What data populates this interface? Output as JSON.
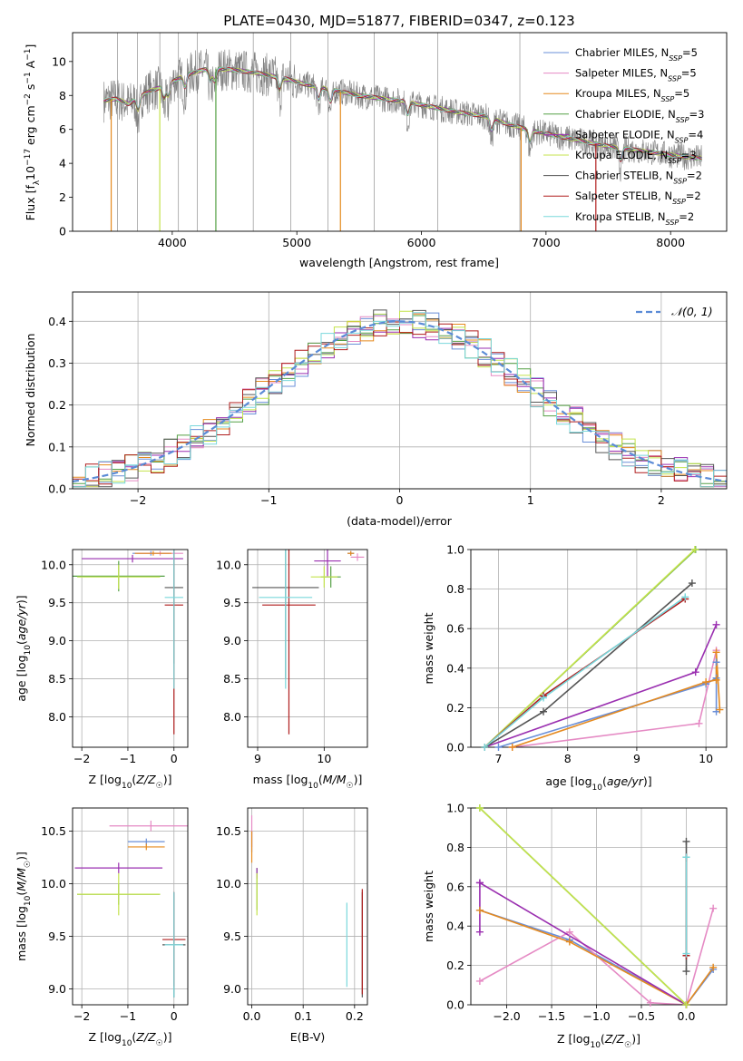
{
  "suptitle": "PLATE=0430, MJD=51877, FIBERID=0347, z=0.123",
  "colors": {
    "Chabrier MILES": "#6a8fd8",
    "Salpeter MILES": "#e58ac4",
    "Kroupa MILES": "#e58a1f",
    "Chabrier ELODIE": "#55a045",
    "Salpeter ELODIE": "#9a2fb0",
    "Kroupa ELODIE": "#c4e34d",
    "Chabrier STELIB": "#555555",
    "Salpeter STELIB": "#b01d1d",
    "Kroupa STELIB": "#7ad8dc"
  },
  "chart_data": [
    {
      "id": "spectrum",
      "type": "line",
      "xlabel": "wavelength [Angstrom, rest frame]",
      "ylabel": "Flux [f_λ 10^-17 erg cm^-2 s^-1 A^-1]",
      "xlim": [
        3200,
        8450
      ],
      "ylim": [
        0,
        11.7
      ],
      "xticks": [
        4000,
        5000,
        6000,
        7000,
        8000
      ],
      "yticks": [
        0,
        2,
        4,
        6,
        8,
        10
      ],
      "grid": false,
      "legend_position": "top-right",
      "data_color": "#808080",
      "continuum_knots": {
        "x": [
          3450,
          3550,
          3650,
          3800,
          3950,
          4100,
          4300,
          4500,
          4700,
          4900,
          5100,
          5300,
          5500,
          5700,
          5900,
          6100,
          6300,
          6500,
          6700,
          6900,
          7100,
          7300,
          7500,
          7700,
          7900,
          8100,
          8250
        ],
        "y": [
          7.7,
          7.8,
          7.5,
          8.2,
          8.6,
          9.2,
          9.6,
          9.5,
          9.3,
          9.0,
          8.6,
          8.3,
          8.0,
          7.8,
          7.6,
          7.3,
          7.0,
          6.8,
          6.3,
          5.9,
          5.6,
          5.3,
          5.0,
          4.8,
          4.6,
          4.4,
          4.3
        ]
      },
      "series": [
        {
          "name": "Chabrier MILES, N_SSP=5",
          "color_key": "Chabrier MILES"
        },
        {
          "name": "Salpeter MILES, N_SSP=5",
          "color_key": "Salpeter MILES"
        },
        {
          "name": "Kroupa MILES, N_SSP=5",
          "color_key": "Kroupa MILES"
        },
        {
          "name": "Chabrier ELODIE, N_SSP=3",
          "color_key": "Chabrier ELODIE"
        },
        {
          "name": "Salpeter ELODIE, N_SSP=4",
          "color_key": "Salpeter ELODIE"
        },
        {
          "name": "Kroupa ELODIE, N_SSP=3",
          "color_key": "Kroupa ELODIE"
        },
        {
          "name": "Chabrier STELIB, N_SSP=2",
          "color_key": "Chabrier STELIB"
        },
        {
          "name": "Salpeter STELIB, N_SSP=2",
          "color_key": "Salpeter STELIB"
        },
        {
          "name": "Kroupa STELIB, N_SSP=2",
          "color_key": "Kroupa STELIB"
        }
      ],
      "legend_labels": [
        {
          "text": "Chabrier MILES, N",
          "sub": "SSP",
          "post": "=5",
          "color_key": "Chabrier MILES"
        },
        {
          "text": "Salpeter MILES, N",
          "sub": "SSP",
          "post": "=5",
          "color_key": "Salpeter MILES"
        },
        {
          "text": "Kroupa MILES, N",
          "sub": "SSP",
          "post": "=5",
          "color_key": "Kroupa MILES"
        },
        {
          "text": "Chabrier ELODIE, N",
          "sub": "SSP",
          "post": "=3",
          "color_key": "Chabrier ELODIE"
        },
        {
          "text": "Salpeter ELODIE, N",
          "sub": "SSP",
          "post": "=4",
          "color_key": "Salpeter ELODIE"
        },
        {
          "text": "Kroupa ELODIE, N",
          "sub": "SSP",
          "post": "=3",
          "color_key": "Kroupa ELODIE"
        },
        {
          "text": "Chabrier STELIB, N",
          "sub": "SSP",
          "post": "=2",
          "color_key": "Chabrier STELIB"
        },
        {
          "text": "Salpeter STELIB, N",
          "sub": "SSP",
          "post": "=2",
          "color_key": "Salpeter STELIB"
        },
        {
          "text": "Kroupa STELIB, N",
          "sub": "SSP",
          "post": "=2",
          "color_key": "Kroupa STELIB"
        }
      ]
    },
    {
      "id": "residuals",
      "type": "line",
      "xlabel": "(data-model)/error",
      "ylabel": "Normed distribution",
      "xlim": [
        -2.5,
        2.5
      ],
      "ylim": [
        0,
        0.47
      ],
      "xticks": [
        -2,
        -1,
        0,
        1,
        2
      ],
      "yticks": [
        0.0,
        0.1,
        0.2,
        0.3,
        0.4
      ],
      "grid": true,
      "legend_position": "top-right",
      "legend_label": "𝒩(0, 1)",
      "gaussian_color": "#5b8bd6",
      "bin_width": 0.1,
      "histogram_amplitude": 0.4
    },
    {
      "id": "age_vs_Z",
      "type": "scatter",
      "xlabel": "Z [log10(Z/Z☉)]",
      "ylabel": "age [log10(age/yr)]",
      "xlim": [
        -2.2,
        0.3
      ],
      "ylim": [
        7.6,
        10.2
      ],
      "xticks": [
        -2,
        -1,
        0
      ],
      "yticks": [
        8.0,
        8.5,
        9.0,
        9.5,
        10.0
      ],
      "grid": true,
      "points": [
        {
          "key": "Chabrier MILES",
          "x": -0.5,
          "xerr": 0.4,
          "y": 10.15,
          "yerr": 0.03
        },
        {
          "key": "Salpeter MILES",
          "x": -0.3,
          "xerr": 0.5,
          "y": 10.15,
          "yerr": 0.03
        },
        {
          "key": "Kroupa MILES",
          "x": -0.45,
          "xerr": 0.4,
          "y": 10.15,
          "yerr": 0.03
        },
        {
          "key": "Chabrier ELODIE",
          "x": -1.2,
          "xerr": 1.0,
          "y": 9.85,
          "yerr": 0.2
        },
        {
          "key": "Salpeter ELODIE",
          "x": -0.9,
          "xerr": 1.1,
          "y": 10.08,
          "yerr": 0.05
        },
        {
          "key": "Kroupa ELODIE",
          "x": -1.2,
          "xerr": 0.9,
          "y": 9.84,
          "yerr": 0.16
        },
        {
          "key": "Chabrier STELIB",
          "x": 0.0,
          "xerr": 0.2,
          "y": 9.7,
          "yerr": 1.0
        },
        {
          "key": "Salpeter STELIB",
          "x": 0.0,
          "xerr": 0.2,
          "y": 9.47,
          "yerr": 1.7
        },
        {
          "key": "Kroupa STELIB",
          "x": 0.0,
          "xerr": 0.2,
          "y": 9.57,
          "yerr": 1.2
        }
      ]
    },
    {
      "id": "age_vs_mass",
      "type": "scatter",
      "xlabel": "mass [log10(M/M☉)]",
      "ylabel": "",
      "xlim": [
        8.85,
        10.65
      ],
      "ylim": [
        7.6,
        10.2
      ],
      "xticks": [
        9,
        10
      ],
      "yticks": [
        8.0,
        8.5,
        9.0,
        9.5,
        10.0
      ],
      "grid": true,
      "points": [
        {
          "key": "Chabrier MILES",
          "x": 10.4,
          "xerr": 0.05,
          "y": 10.15,
          "yerr": 0.03
        },
        {
          "key": "Salpeter MILES",
          "x": 10.5,
          "xerr": 0.1,
          "y": 10.1,
          "yerr": 0.05
        },
        {
          "key": "Kroupa MILES",
          "x": 10.4,
          "xerr": 0.05,
          "y": 10.15,
          "yerr": 0.03
        },
        {
          "key": "Chabrier ELODIE",
          "x": 10.1,
          "xerr": 0.15,
          "y": 9.84,
          "yerr": 0.14
        },
        {
          "key": "Salpeter ELODIE",
          "x": 10.05,
          "xerr": 0.2,
          "y": 10.05,
          "yerr": 0.2
        },
        {
          "key": "Kroupa ELODIE",
          "x": 10.0,
          "xerr": 0.2,
          "y": 9.84,
          "yerr": 0.14
        },
        {
          "key": "Chabrier STELIB",
          "x": 9.42,
          "xerr": 0.5,
          "y": 9.7,
          "yerr": 1.2
        },
        {
          "key": "Salpeter STELIB",
          "x": 9.47,
          "xerr": 0.4,
          "y": 9.47,
          "yerr": 1.7
        },
        {
          "key": "Kroupa STELIB",
          "x": 9.42,
          "xerr": 0.4,
          "y": 9.57,
          "yerr": 1.2
        }
      ]
    },
    {
      "id": "weight_vs_age",
      "type": "line",
      "xlabel": "age [log10(age/yr)]",
      "ylabel": "mass weight",
      "xlim": [
        6.6,
        10.3
      ],
      "ylim": [
        0.0,
        1.0
      ],
      "xticks": [
        7,
        8,
        9,
        10
      ],
      "yticks": [
        0.0,
        0.2,
        0.4,
        0.6,
        0.8,
        1.0
      ],
      "grid": true,
      "series": [
        {
          "key": "Chabrier MILES",
          "x": [
            7.0,
            10.0,
            10.15,
            10.15,
            10.15
          ],
          "y": [
            0.0,
            0.32,
            0.35,
            0.43,
            0.18
          ]
        },
        {
          "key": "Salpeter MILES",
          "x": [
            7.2,
            9.9,
            10.15
          ],
          "y": [
            0.0,
            0.12,
            0.49
          ]
        },
        {
          "key": "Kroupa MILES",
          "x": [
            7.2,
            10.0,
            10.15,
            10.15,
            10.2
          ],
          "y": [
            0.0,
            0.33,
            0.34,
            0.48,
            0.19
          ]
        },
        {
          "key": "Chabrier ELODIE",
          "x": [
            6.8,
            9.85
          ],
          "y": [
            0.0,
            1.0
          ]
        },
        {
          "key": "Salpeter ELODIE",
          "x": [
            6.8,
            9.85,
            10.15
          ],
          "y": [
            0.0,
            0.38,
            0.62
          ]
        },
        {
          "key": "Kroupa ELODIE",
          "x": [
            6.8,
            9.84
          ],
          "y": [
            0.0,
            1.0
          ]
        },
        {
          "key": "Chabrier STELIB",
          "x": [
            6.8,
            7.65,
            9.8
          ],
          "y": [
            0.0,
            0.18,
            0.83
          ]
        },
        {
          "key": "Salpeter STELIB",
          "x": [
            6.8,
            7.65,
            9.7
          ],
          "y": [
            0.0,
            0.26,
            0.75
          ]
        },
        {
          "key": "Kroupa STELIB",
          "x": [
            6.8,
            7.65,
            9.7
          ],
          "y": [
            0.0,
            0.25,
            0.76
          ]
        }
      ]
    },
    {
      "id": "mass_vs_Z",
      "type": "scatter",
      "xlabel": "Z [log10(Z/Z☉)]",
      "ylabel": "mass [log10(M/M☉)]",
      "xlim": [
        -2.2,
        0.3
      ],
      "ylim": [
        8.85,
        10.72
      ],
      "xticks": [
        -2,
        -1,
        0
      ],
      "yticks": [
        9.0,
        9.5,
        10.0,
        10.5
      ],
      "grid": true,
      "points": [
        {
          "key": "Chabrier MILES",
          "x": -0.6,
          "xerr": 0.4,
          "y": 10.4,
          "yerr": 0.03
        },
        {
          "key": "Salpeter MILES",
          "x": -0.5,
          "xerr": 0.9,
          "y": 10.55,
          "yerr": 0.05
        },
        {
          "key": "Kroupa MILES",
          "x": -0.6,
          "xerr": 0.4,
          "y": 10.35,
          "yerr": 0.03
        },
        {
          "key": "Chabrier ELODIE",
          "x": -1.2,
          "xerr": 0.9,
          "y": 9.9,
          "yerr": 0.1
        },
        {
          "key": "Salpeter ELODIE",
          "x": -1.2,
          "xerr": 0.95,
          "y": 10.15,
          "yerr": 0.05
        },
        {
          "key": "Kroupa ELODIE",
          "x": -1.2,
          "xerr": 0.9,
          "y": 9.9,
          "yerr": 0.2
        },
        {
          "key": "Chabrier STELIB",
          "x": 0.0,
          "xerr": 0.25,
          "y": 9.42,
          "yerr": 0.5
        },
        {
          "key": "Salpeter STELIB",
          "x": 0.0,
          "xerr": 0.25,
          "y": 9.47,
          "yerr": 0.45
        },
        {
          "key": "Kroupa STELIB",
          "x": 0.0,
          "xerr": 0.2,
          "y": 9.42,
          "yerr": 0.5
        }
      ]
    },
    {
      "id": "mass_vs_ebv",
      "type": "scatter",
      "xlabel": "E(B-V)",
      "ylabel": "",
      "xlim": [
        -0.008,
        0.225
      ],
      "ylim": [
        8.85,
        10.72
      ],
      "xticks": [
        0.0,
        0.1,
        0.2
      ],
      "yticks": [
        9.0,
        9.5,
        10.0,
        10.5
      ],
      "grid": true,
      "points": [
        {
          "key": "Chabrier MILES",
          "x": 0.0,
          "xerr": 0.0,
          "y": 10.4,
          "yerr": 0.1
        },
        {
          "key": "Salpeter MILES",
          "x": 0.0,
          "xerr": 0.0,
          "y": 10.5,
          "yerr": 0.15
        },
        {
          "key": "Kroupa MILES",
          "x": 0.0,
          "xerr": 0.0,
          "y": 10.35,
          "yerr": 0.15
        },
        {
          "key": "Chabrier ELODIE",
          "x": 0.01,
          "xerr": 0.0,
          "y": 9.95,
          "yerr": 0.2
        },
        {
          "key": "Salpeter ELODIE",
          "x": 0.01,
          "xerr": 0.0,
          "y": 10.1,
          "yerr": 0.05
        },
        {
          "key": "Kroupa ELODIE",
          "x": 0.01,
          "xerr": 0.0,
          "y": 9.9,
          "yerr": 0.2
        },
        {
          "key": "Chabrier STELIB",
          "x": 0.215,
          "xerr": 0.0,
          "y": 9.42,
          "yerr": 0.5
        },
        {
          "key": "Salpeter STELIB",
          "x": 0.215,
          "xerr": 0.0,
          "y": 9.45,
          "yerr": 0.5
        },
        {
          "key": "Kroupa STELIB",
          "x": 0.185,
          "xerr": 0.0,
          "y": 9.42,
          "yerr": 0.4
        }
      ]
    },
    {
      "id": "weight_vs_Z",
      "type": "line",
      "xlabel": "Z [log10(Z/Z☉)]",
      "ylabel": "mass weight",
      "xlim": [
        -2.4,
        0.45
      ],
      "ylim": [
        0.0,
        1.0
      ],
      "xticks": [
        -2.0,
        -1.5,
        -1.0,
        -0.5,
        0.0
      ],
      "yticks": [
        0.0,
        0.2,
        0.4,
        0.6,
        0.8,
        1.0
      ],
      "grid": true,
      "series": [
        {
          "key": "Chabrier MILES",
          "x": [
            -2.3,
            -1.3,
            0.0,
            0.3
          ],
          "y": [
            0.48,
            0.33,
            0.0,
            0.18
          ]
        },
        {
          "key": "Salpeter MILES",
          "x": [
            -2.3,
            -1.3,
            -0.4,
            0.0,
            0.3
          ],
          "y": [
            0.12,
            0.37,
            0.01,
            0.0,
            0.49
          ]
        },
        {
          "key": "Kroupa MILES",
          "x": [
            -2.3,
            -1.3,
            0.0,
            0.3
          ],
          "y": [
            0.48,
            0.32,
            0.0,
            0.19
          ]
        },
        {
          "key": "Chabrier ELODIE",
          "x": [
            -2.3,
            0.0
          ],
          "y": [
            1.0,
            0.0
          ]
        },
        {
          "key": "Salpeter ELODIE",
          "x": [
            -2.3,
            -2.3,
            -2.3,
            0.0
          ],
          "y": [
            0.37,
            0.62,
            0.62,
            0.0
          ]
        },
        {
          "key": "Kroupa ELODIE",
          "x": [
            -2.3,
            0.0
          ],
          "y": [
            1.0,
            0.0
          ]
        },
        {
          "key": "Chabrier STELIB",
          "x": [
            0.0,
            0.0
          ],
          "y": [
            0.17,
            0.83
          ]
        },
        {
          "key": "Salpeter STELIB",
          "x": [
            0.0,
            0.0
          ],
          "y": [
            0.25,
            0.75
          ]
        },
        {
          "key": "Kroupa STELIB",
          "x": [
            0.0,
            0.0
          ],
          "y": [
            0.26,
            0.75
          ]
        }
      ]
    }
  ]
}
